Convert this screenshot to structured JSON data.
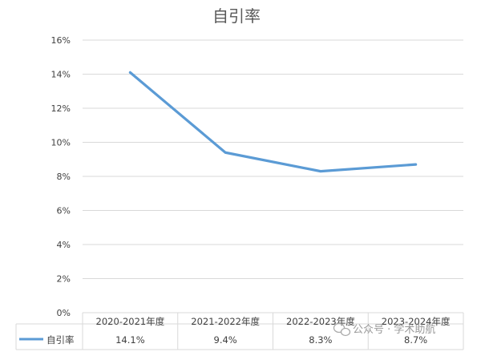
{
  "chart_data": {
    "type": "line",
    "title": "自引率",
    "categories": [
      "2020-2021年度",
      "2021-2022年度",
      "2022-2023年度",
      "2023-2024年度"
    ],
    "series": [
      {
        "name": "自引率",
        "values": [
          14.1,
          9.4,
          8.3,
          8.7
        ],
        "data_labels": [
          "14.1%",
          "9.4%",
          "8.3%",
          "8.7%"
        ],
        "color": "#5b9bd5"
      }
    ],
    "ylim": [
      0,
      16
    ],
    "y_ticks": [
      "0%",
      "2%",
      "4%",
      "6%",
      "8%",
      "10%",
      "12%",
      "14%",
      "16%"
    ],
    "grid": true,
    "legend": "data-table"
  },
  "watermark": {
    "text": "公众号 · 学术助航",
    "icon": "wechat-icon"
  }
}
